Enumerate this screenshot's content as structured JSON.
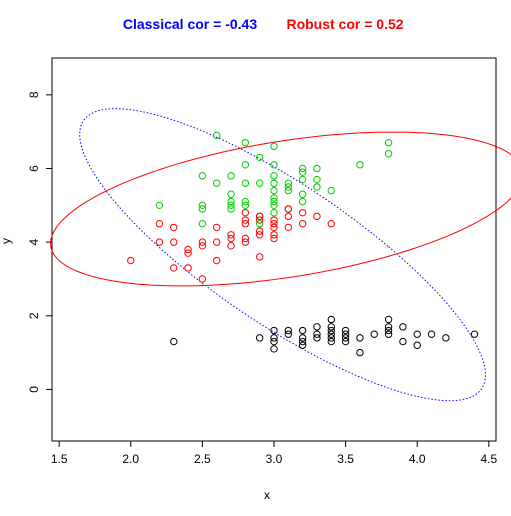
{
  "chart_data": {
    "type": "scatter",
    "title_classical": "Classical cor = -0.43",
    "title_robust": "Robust cor = 0.52",
    "xlabel": "x",
    "ylabel": "y",
    "xlim": [
      1.45,
      4.55
    ],
    "ylim": [
      -1.4,
      9.0
    ],
    "xticks": [
      "1.5",
      "2.0",
      "2.5",
      "3.0",
      "3.5",
      "4.0",
      "4.5"
    ],
    "yticks": [
      "0",
      "2",
      "4",
      "6",
      "8"
    ],
    "grid": false,
    "colors": {
      "classical": "#0000ff",
      "robust": "#ff0000",
      "green": "#00cd00",
      "red": "#ff0000",
      "black": "#000000"
    },
    "ellipses": [
      {
        "name": "Classical",
        "color": "#0000ff",
        "style": "dotted",
        "cx": 3.06,
        "cy": 3.66,
        "rx": 0.77,
        "ry": 4.14,
        "theta_deg": 17
      },
      {
        "name": "Robust",
        "color": "#ff0000",
        "style": "solid",
        "cx": 3.09,
        "cy": 4.9,
        "rx": 1.34,
        "ry": 2.3,
        "theta_deg": -31
      }
    ],
    "series": [
      {
        "color": "#00cd00",
        "points": [
          [
            2.2,
            5.0
          ],
          [
            2.5,
            5.0
          ],
          [
            2.5,
            5.8
          ],
          [
            2.5,
            4.9
          ],
          [
            2.5,
            4.5
          ],
          [
            2.6,
            5.6
          ],
          [
            2.6,
            6.9
          ],
          [
            2.7,
            5.0
          ],
          [
            2.7,
            5.1
          ],
          [
            2.7,
            5.3
          ],
          [
            2.7,
            5.8
          ],
          [
            2.7,
            4.9
          ],
          [
            2.8,
            5.6
          ],
          [
            2.8,
            6.1
          ],
          [
            2.8,
            6.7
          ],
          [
            2.8,
            5.1
          ],
          [
            2.8,
            5.0
          ],
          [
            2.9,
            5.6
          ],
          [
            2.9,
            6.3
          ],
          [
            2.9,
            4.7
          ],
          [
            2.9,
            4.5
          ],
          [
            3.0,
            5.8
          ],
          [
            3.0,
            6.6
          ],
          [
            3.0,
            5.6
          ],
          [
            3.0,
            5.0
          ],
          [
            3.0,
            5.1
          ],
          [
            3.0,
            5.2
          ],
          [
            3.0,
            5.4
          ],
          [
            3.0,
            4.8
          ],
          [
            3.0,
            6.1
          ],
          [
            3.1,
            5.5
          ],
          [
            3.1,
            5.6
          ],
          [
            3.1,
            4.9
          ],
          [
            3.1,
            5.4
          ],
          [
            3.2,
            5.9
          ],
          [
            3.2,
            5.7
          ],
          [
            3.2,
            6.0
          ],
          [
            3.2,
            5.1
          ],
          [
            3.2,
            5.3
          ],
          [
            3.3,
            5.7
          ],
          [
            3.3,
            6.0
          ],
          [
            3.3,
            5.5
          ],
          [
            3.4,
            5.4
          ],
          [
            3.6,
            6.1
          ],
          [
            3.8,
            6.7
          ],
          [
            3.8,
            6.4
          ]
        ]
      },
      {
        "color": "#ff0000",
        "points": [
          [
            2.0,
            3.5
          ],
          [
            2.2,
            4.0
          ],
          [
            2.2,
            4.5
          ],
          [
            2.3,
            4.0
          ],
          [
            2.3,
            3.3
          ],
          [
            2.3,
            4.4
          ],
          [
            2.4,
            3.3
          ],
          [
            2.4,
            3.7
          ],
          [
            2.4,
            3.8
          ],
          [
            2.5,
            3.0
          ],
          [
            2.5,
            3.9
          ],
          [
            2.5,
            4.0
          ],
          [
            2.6,
            3.5
          ],
          [
            2.6,
            4.0
          ],
          [
            2.6,
            4.4
          ],
          [
            2.7,
            3.9
          ],
          [
            2.7,
            4.2
          ],
          [
            2.7,
            4.1
          ],
          [
            2.8,
            4.0
          ],
          [
            2.8,
            4.8
          ],
          [
            2.8,
            4.6
          ],
          [
            2.8,
            4.5
          ],
          [
            2.8,
            4.1
          ],
          [
            2.9,
            4.3
          ],
          [
            2.9,
            4.2
          ],
          [
            2.9,
            3.6
          ],
          [
            2.9,
            4.6
          ],
          [
            2.9,
            4.7
          ],
          [
            3.0,
            4.2
          ],
          [
            3.0,
            4.4
          ],
          [
            3.0,
            4.5
          ],
          [
            3.0,
            4.6
          ],
          [
            3.0,
            4.1
          ],
          [
            3.1,
            4.4
          ],
          [
            3.1,
            4.7
          ],
          [
            3.1,
            4.9
          ],
          [
            3.2,
            4.5
          ],
          [
            3.2,
            4.8
          ],
          [
            3.3,
            4.7
          ],
          [
            3.4,
            4.5
          ]
        ]
      },
      {
        "color": "#000000",
        "points": [
          [
            2.3,
            1.3
          ],
          [
            2.9,
            1.4
          ],
          [
            3.0,
            1.1
          ],
          [
            3.0,
            1.3
          ],
          [
            3.0,
            1.4
          ],
          [
            3.0,
            1.6
          ],
          [
            3.1,
            1.5
          ],
          [
            3.1,
            1.6
          ],
          [
            3.2,
            1.2
          ],
          [
            3.2,
            1.3
          ],
          [
            3.2,
            1.4
          ],
          [
            3.2,
            1.6
          ],
          [
            3.3,
            1.4
          ],
          [
            3.3,
            1.7
          ],
          [
            3.4,
            1.3
          ],
          [
            3.4,
            1.4
          ],
          [
            3.4,
            1.5
          ],
          [
            3.4,
            1.6
          ],
          [
            3.4,
            1.7
          ],
          [
            3.4,
            1.9
          ],
          [
            3.5,
            1.3
          ],
          [
            3.5,
            1.4
          ],
          [
            3.5,
            1.5
          ],
          [
            3.5,
            1.6
          ],
          [
            3.6,
            1.0
          ],
          [
            3.6,
            1.4
          ],
          [
            3.7,
            1.5
          ],
          [
            3.8,
            1.5
          ],
          [
            3.8,
            1.6
          ],
          [
            3.8,
            1.7
          ],
          [
            3.8,
            1.9
          ],
          [
            3.9,
            1.3
          ],
          [
            3.9,
            1.7
          ],
          [
            4.0,
            1.2
          ],
          [
            4.1,
            1.5
          ],
          [
            4.2,
            1.4
          ],
          [
            4.4,
            1.5
          ],
          [
            4.0,
            1.5
          ],
          [
            3.3,
            1.5
          ]
        ]
      }
    ]
  }
}
